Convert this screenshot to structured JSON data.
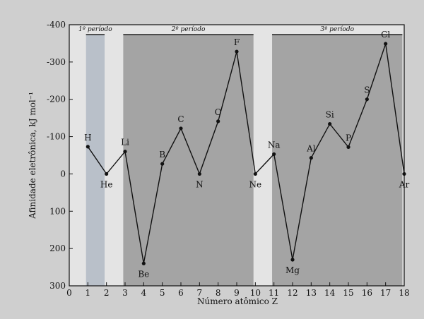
{
  "chart_data": {
    "type": "line",
    "xlabel": "Número atômico Z",
    "ylabel": "Afinidade eletrônica, kJ mol⁻¹",
    "xlim": [
      0,
      18
    ],
    "ylim": [
      300,
      -400
    ],
    "x_ticks": [
      "0",
      "1",
      "2",
      "3",
      "4",
      "5",
      "6",
      "7",
      "8",
      "9",
      "10",
      "11",
      "12",
      "13",
      "14",
      "15",
      "16",
      "17",
      "18"
    ],
    "y_ticks": [
      "-400",
      "-300",
      "-200",
      "-100",
      "0",
      "100",
      "200",
      "300"
    ],
    "periods": [
      {
        "label": "1º período",
        "start": 0.9,
        "end": 1.9
      },
      {
        "label": "2º período",
        "start": 2.9,
        "end": 9.9
      },
      {
        "label": "3º período",
        "start": 10.9,
        "end": 17.9
      }
    ],
    "series": [
      {
        "points": [
          {
            "z": 1,
            "symbol": "H",
            "value": -73
          },
          {
            "z": 2,
            "symbol": "He",
            "value": 0
          },
          {
            "z": 3,
            "symbol": "Li",
            "value": -60
          },
          {
            "z": 4,
            "symbol": "Be",
            "value": 240
          },
          {
            "z": 5,
            "symbol": "B",
            "value": -27
          },
          {
            "z": 6,
            "symbol": "C",
            "value": -122
          },
          {
            "z": 7,
            "symbol": "N",
            "value": 0
          },
          {
            "z": 8,
            "symbol": "O",
            "value": -141
          },
          {
            "z": 9,
            "symbol": "F",
            "value": -328
          },
          {
            "z": 10,
            "symbol": "Ne",
            "value": 0
          },
          {
            "z": 11,
            "symbol": "Na",
            "value": -53
          },
          {
            "z": 12,
            "symbol": "Mg",
            "value": 230
          },
          {
            "z": 13,
            "symbol": "Al",
            "value": -43
          },
          {
            "z": 14,
            "symbol": "Si",
            "value": -134
          },
          {
            "z": 15,
            "symbol": "P",
            "value": -72
          },
          {
            "z": 16,
            "symbol": "S",
            "value": -200
          },
          {
            "z": 17,
            "symbol": "Cl",
            "value": -349
          },
          {
            "z": 18,
            "symbol": "Ar",
            "value": 0
          }
        ]
      }
    ],
    "colors": {
      "band": "#a4a4a4",
      "band_light": "#b9c0c9",
      "line": "#111111"
    }
  }
}
